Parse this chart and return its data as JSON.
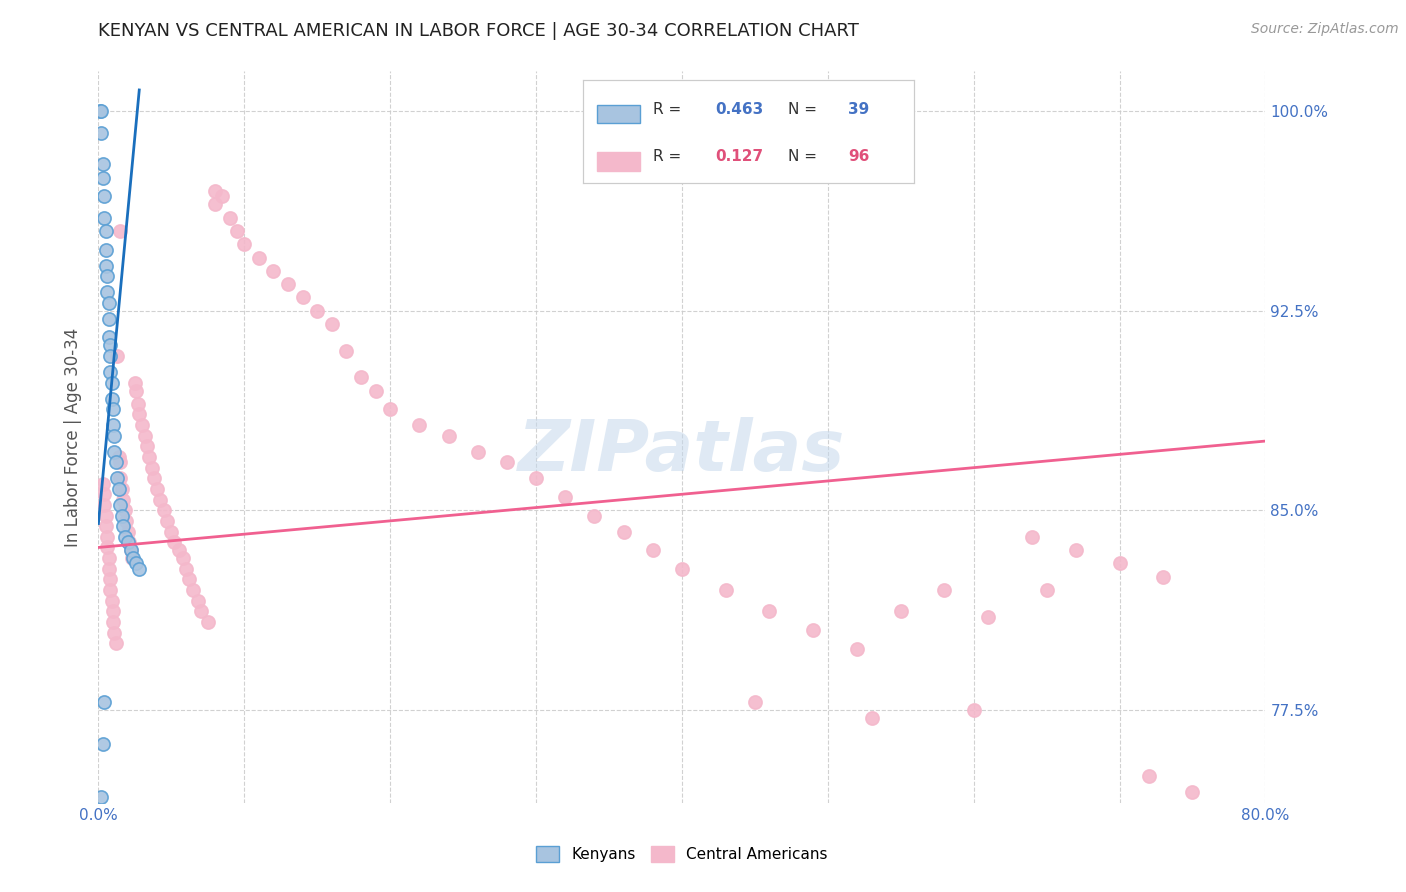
{
  "title": "KENYAN VS CENTRAL AMERICAN IN LABOR FORCE | AGE 30-34 CORRELATION CHART",
  "source": "Source: ZipAtlas.com",
  "ylabel": "In Labor Force | Age 30-34",
  "xlim": [
    0.0,
    0.8
  ],
  "ylim": [
    0.74,
    1.015
  ],
  "xtick_positions": [
    0.0,
    0.1,
    0.2,
    0.3,
    0.4,
    0.5,
    0.6,
    0.7,
    0.8
  ],
  "xticklabels": [
    "0.0%",
    "",
    "",
    "",
    "",
    "",
    "",
    "",
    "80.0%"
  ],
  "ytick_positions": [
    0.775,
    0.85,
    0.925,
    1.0
  ],
  "ytick_labels": [
    "77.5%",
    "85.0%",
    "92.5%",
    "100.0%"
  ],
  "legend_R1": "0.463",
  "legend_N1": "39",
  "legend_R2": "0.127",
  "legend_N2": "96",
  "kenyan_fill": "#a8c4e0",
  "kenyan_edge": "#5a9fd4",
  "central_fill": "#f4b8cb",
  "central_edge": "#f4b8cb",
  "kenyan_line_color": "#1a6fbd",
  "central_line_color": "#f06090",
  "watermark": "ZIPatlas",
  "background_color": "#ffffff",
  "grid_color": "#cccccc",
  "title_color": "#222222",
  "tick_color": "#4472c4",
  "ylabel_color": "#555555",
  "kenyan_x": [
    0.001,
    0.002,
    0.002,
    0.003,
    0.003,
    0.004,
    0.004,
    0.005,
    0.005,
    0.005,
    0.006,
    0.006,
    0.007,
    0.007,
    0.007,
    0.008,
    0.008,
    0.008,
    0.009,
    0.009,
    0.01,
    0.01,
    0.011,
    0.011,
    0.012,
    0.013,
    0.014,
    0.015,
    0.016,
    0.017,
    0.018,
    0.02,
    0.022,
    0.024,
    0.026,
    0.028,
    0.004,
    0.003,
    0.002
  ],
  "kenyan_y": [
    1.0,
    1.0,
    0.992,
    0.98,
    0.975,
    0.968,
    0.96,
    0.955,
    0.948,
    0.942,
    0.938,
    0.932,
    0.928,
    0.922,
    0.915,
    0.912,
    0.908,
    0.902,
    0.898,
    0.892,
    0.888,
    0.882,
    0.878,
    0.872,
    0.868,
    0.862,
    0.858,
    0.852,
    0.848,
    0.844,
    0.84,
    0.838,
    0.835,
    0.832,
    0.83,
    0.828,
    0.778,
    0.762,
    0.742
  ],
  "central_x": [
    0.003,
    0.004,
    0.004,
    0.005,
    0.005,
    0.006,
    0.006,
    0.007,
    0.007,
    0.008,
    0.008,
    0.009,
    0.01,
    0.01,
    0.011,
    0.012,
    0.013,
    0.014,
    0.015,
    0.015,
    0.016,
    0.017,
    0.018,
    0.019,
    0.02,
    0.021,
    0.022,
    0.023,
    0.025,
    0.026,
    0.027,
    0.028,
    0.03,
    0.032,
    0.033,
    0.035,
    0.037,
    0.038,
    0.04,
    0.042,
    0.045,
    0.047,
    0.05,
    0.052,
    0.055,
    0.058,
    0.06,
    0.062,
    0.065,
    0.068,
    0.07,
    0.075,
    0.08,
    0.085,
    0.09,
    0.095,
    0.1,
    0.11,
    0.12,
    0.13,
    0.14,
    0.15,
    0.16,
    0.17,
    0.18,
    0.19,
    0.2,
    0.22,
    0.24,
    0.26,
    0.28,
    0.3,
    0.32,
    0.34,
    0.36,
    0.38,
    0.4,
    0.43,
    0.46,
    0.49,
    0.52,
    0.55,
    0.58,
    0.61,
    0.64,
    0.67,
    0.7,
    0.73,
    0.45,
    0.53,
    0.72,
    0.75,
    0.65,
    0.6,
    0.08,
    0.015
  ],
  "central_y": [
    0.86,
    0.856,
    0.852,
    0.848,
    0.844,
    0.84,
    0.836,
    0.832,
    0.828,
    0.824,
    0.82,
    0.816,
    0.812,
    0.808,
    0.804,
    0.8,
    0.908,
    0.87,
    0.868,
    0.862,
    0.858,
    0.854,
    0.85,
    0.846,
    0.842,
    0.838,
    0.835,
    0.832,
    0.898,
    0.895,
    0.89,
    0.886,
    0.882,
    0.878,
    0.874,
    0.87,
    0.866,
    0.862,
    0.858,
    0.854,
    0.85,
    0.846,
    0.842,
    0.838,
    0.835,
    0.832,
    0.828,
    0.824,
    0.82,
    0.816,
    0.812,
    0.808,
    0.97,
    0.968,
    0.96,
    0.955,
    0.95,
    0.945,
    0.94,
    0.935,
    0.93,
    0.925,
    0.92,
    0.91,
    0.9,
    0.895,
    0.888,
    0.882,
    0.878,
    0.872,
    0.868,
    0.862,
    0.855,
    0.848,
    0.842,
    0.835,
    0.828,
    0.82,
    0.812,
    0.805,
    0.798,
    0.812,
    0.82,
    0.81,
    0.84,
    0.835,
    0.83,
    0.825,
    0.778,
    0.772,
    0.75,
    0.744,
    0.82,
    0.775,
    0.965,
    0.955
  ]
}
